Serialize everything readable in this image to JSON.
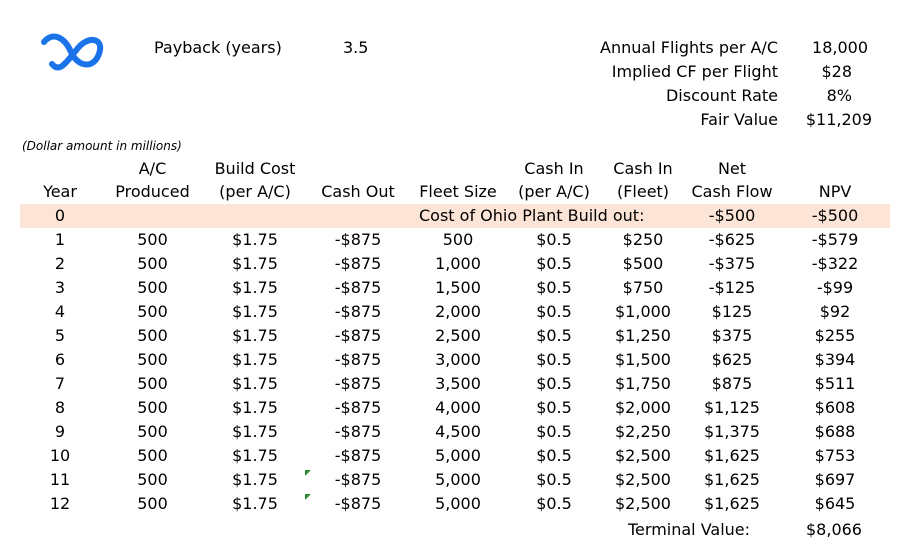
{
  "logo": {
    "icon": "brand-logo-icon",
    "color": "#1a73e8"
  },
  "payback": {
    "label": "Payback (years)",
    "value": "3.5"
  },
  "summary": [
    {
      "label": "Annual Flights per A/C",
      "value": "18,000"
    },
    {
      "label": "Implied CF per Flight",
      "value": "$28"
    },
    {
      "label": "Discount Rate",
      "value": "8%"
    },
    {
      "label": "Fair Value",
      "value": "$11,209"
    }
  ],
  "note": "(Dollar amount in millions)",
  "headers": {
    "year": "Year",
    "ac_produced_1": "A/C",
    "ac_produced_2": "Produced",
    "build_cost_1": "Build Cost",
    "build_cost_2": "(per A/C)",
    "cash_out": "Cash Out",
    "fleet_size": "Fleet Size",
    "cash_in_ac_1": "Cash In",
    "cash_in_ac_2": "(per A/C)",
    "cash_in_fleet_1": "Cash In",
    "cash_in_fleet_2": "(Fleet)",
    "net_cf_1": "Net",
    "net_cf_2": "Cash Flow",
    "npv": "NPV"
  },
  "row0": {
    "year": "0",
    "label": "Cost of Ohio Plant Build out:",
    "net": "-$500",
    "npv": "-$500",
    "highlight": "#fce4d6"
  },
  "rows": [
    [
      "1",
      "500",
      "$1.75",
      "-$875",
      "500",
      "$0.5",
      "$250",
      "-$625",
      "-$579"
    ],
    [
      "2",
      "500",
      "$1.75",
      "-$875",
      "1,000",
      "$0.5",
      "$500",
      "-$375",
      "-$322"
    ],
    [
      "3",
      "500",
      "$1.75",
      "-$875",
      "1,500",
      "$0.5",
      "$750",
      "-$125",
      "-$99"
    ],
    [
      "4",
      "500",
      "$1.75",
      "-$875",
      "2,000",
      "$0.5",
      "$1,000",
      "$125",
      "$92"
    ],
    [
      "5",
      "500",
      "$1.75",
      "-$875",
      "2,500",
      "$0.5",
      "$1,250",
      "$375",
      "$255"
    ],
    [
      "6",
      "500",
      "$1.75",
      "-$875",
      "3,000",
      "$0.5",
      "$1,500",
      "$625",
      "$394"
    ],
    [
      "7",
      "500",
      "$1.75",
      "-$875",
      "3,500",
      "$0.5",
      "$1,750",
      "$875",
      "$511"
    ],
    [
      "8",
      "500",
      "$1.75",
      "-$875",
      "4,000",
      "$0.5",
      "$2,000",
      "$1,125",
      "$608"
    ],
    [
      "9",
      "500",
      "$1.75",
      "-$875",
      "4,500",
      "$0.5",
      "$2,250",
      "$1,375",
      "$688"
    ],
    [
      "10",
      "500",
      "$1.75",
      "-$875",
      "5,000",
      "$0.5",
      "$2,500",
      "$1,625",
      "$753"
    ],
    [
      "11",
      "500",
      "$1.75",
      "-$875",
      "5,000",
      "$0.5",
      "$2,500",
      "$1,625",
      "$697"
    ],
    [
      "12",
      "500",
      "$1.75",
      "-$875",
      "5,000",
      "$0.5",
      "$2,500",
      "$1,625",
      "$645"
    ]
  ],
  "terminal": {
    "label": "Terminal Value:",
    "value": "$8,066"
  }
}
